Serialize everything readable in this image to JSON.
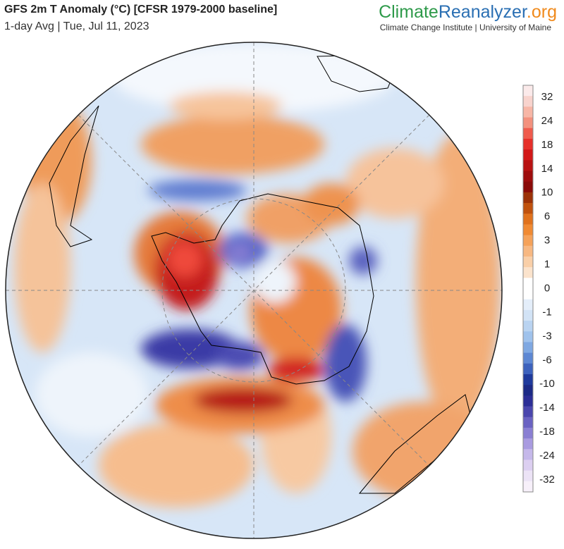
{
  "header": {
    "title": "GFS 2m T Anomaly (°C) [CFSR 1979-2000 baseline]",
    "subtitle": "1-day Avg | Tue, Jul 11, 2023"
  },
  "brand": {
    "parts": [
      "Climate",
      "Reanalyzer",
      ".org"
    ],
    "credit": "Climate Change Institute | University of Maine"
  },
  "colorbar": {
    "labels": [
      32,
      24,
      18,
      14,
      10,
      6,
      3,
      1,
      0,
      -1,
      -3,
      -6,
      -10,
      -14,
      -18,
      -24,
      -32
    ],
    "colors": [
      "#fbeaea",
      "#f8d3cd",
      "#f7b6a6",
      "#f3917e",
      "#ef5b4d",
      "#e6302a",
      "#d21818",
      "#b81212",
      "#9e0d0d",
      "#8a0b08",
      "#9c3208",
      "#c0520e",
      "#e0721d",
      "#f08a33",
      "#f5a25a",
      "#f7b882",
      "#f9cfa8",
      "#fbe3cc",
      "#ffffff",
      "#ffffff",
      "#e4eefa",
      "#d2e3f6",
      "#b9d3f1",
      "#9fc2ec",
      "#7fa8e2",
      "#5d87d3",
      "#3d62bd",
      "#1f3a9c",
      "#1c2a86",
      "#2c2e96",
      "#4a46ad",
      "#6a62c2",
      "#8a7fd3",
      "#a99be0",
      "#c5b8ea",
      "#dccff1",
      "#ece3f6",
      "#f7f0fa"
    ]
  }
}
